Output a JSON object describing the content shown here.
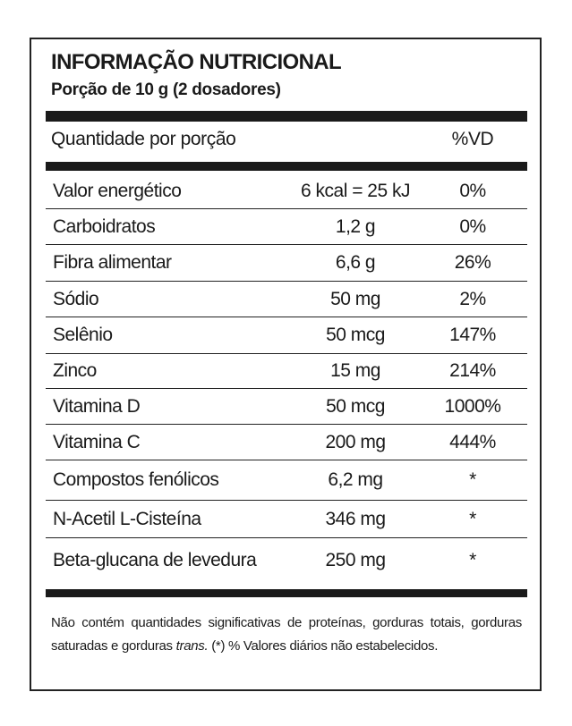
{
  "header": {
    "title": "INFORMAÇÃO NUTRICIONAL",
    "subtitle": "Porção de 10 g (2 dosadores)"
  },
  "table": {
    "columns": [
      "Quantidade por porção",
      "%VD"
    ],
    "rows": [
      [
        "Valor energético",
        "6 kcal = 25 kJ",
        "0%"
      ],
      [
        "Carboidratos",
        "1,2 g",
        "0%"
      ],
      [
        "Fibra alimentar",
        "6,6 g",
        "26%"
      ],
      [
        "Sódio",
        "50 mg",
        "2%"
      ],
      [
        "Selênio",
        "50 mcg",
        "147%"
      ],
      [
        "Zinco",
        "15 mg",
        "214%"
      ],
      [
        "Vitamina D",
        "50 mcg",
        "1000%"
      ],
      [
        "Vitamina C",
        "200 mg",
        "444%"
      ],
      [
        "Compostos fenólicos",
        "6,2 mg",
        "*"
      ],
      [
        "N-Acetil L-Cisteína",
        "346 mg",
        "*"
      ],
      [
        "Beta-glucana de levedura",
        "250 mg",
        "*"
      ]
    ]
  },
  "footnote": {
    "text_before": "Não contém quantidades significativas de proteínas, gorduras totais, gorduras saturadas e gorduras",
    "emphasis": "trans.",
    "text_after": "(*) % Valores diários não estabelecidos."
  }
}
